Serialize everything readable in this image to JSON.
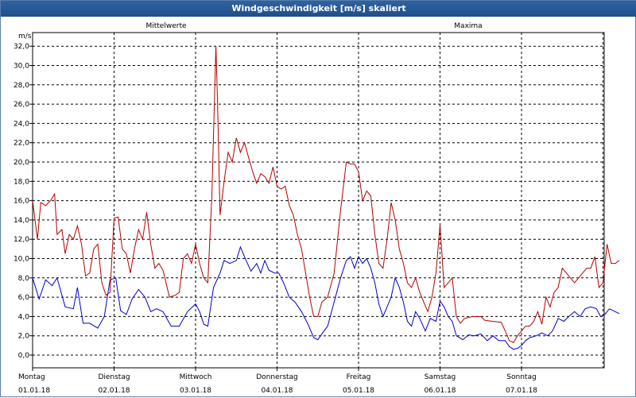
{
  "window": {
    "title": "Windgeschwindigkeit [m/s] skaliert"
  },
  "chart_data": {
    "type": "line",
    "ylabel": "m/s",
    "ylim": [
      -1,
      33
    ],
    "y_ticks": [
      "0,0",
      "2,0",
      "4,0",
      "6,0",
      "8,0",
      "10,0",
      "12,0",
      "14,0",
      "16,0",
      "18,0",
      "20,0",
      "22,0",
      "24,0",
      "26,0",
      "28,0",
      "30,0",
      "32,0"
    ],
    "xlim": [
      0,
      7.0
    ],
    "day_labels": [
      {
        "weekday": "Montag",
        "date": "01.01.18"
      },
      {
        "weekday": "Dienstag",
        "date": "02.01.18"
      },
      {
        "weekday": "Mittwoch",
        "date": "03.01.18"
      },
      {
        "weekday": "Donnerstag",
        "date": "04.01.18"
      },
      {
        "weekday": "Freitag",
        "date": "05.01.18"
      },
      {
        "weekday": "Samstag",
        "date": "06.01.18"
      },
      {
        "weekday": "Sonntag",
        "date": "07.01.18"
      }
    ],
    "grid": true,
    "series": [
      {
        "name": "Mittelwerte",
        "color": "#0000c8",
        "points": [
          [
            0.0,
            8.0
          ],
          [
            0.08,
            5.8
          ],
          [
            0.16,
            7.8
          ],
          [
            0.24,
            7.2
          ],
          [
            0.3,
            8.0
          ],
          [
            0.4,
            5.0
          ],
          [
            0.5,
            4.8
          ],
          [
            0.55,
            7.0
          ],
          [
            0.62,
            3.3
          ],
          [
            0.7,
            3.3
          ],
          [
            0.8,
            2.8
          ],
          [
            0.88,
            4.0
          ],
          [
            0.95,
            7.8
          ],
          [
            1.02,
            8.0
          ],
          [
            1.08,
            4.6
          ],
          [
            1.15,
            4.2
          ],
          [
            1.22,
            5.8
          ],
          [
            1.3,
            6.8
          ],
          [
            1.38,
            6.0
          ],
          [
            1.45,
            4.5
          ],
          [
            1.52,
            4.8
          ],
          [
            1.6,
            4.5
          ],
          [
            1.7,
            3.0
          ],
          [
            1.8,
            3.0
          ],
          [
            1.9,
            4.5
          ],
          [
            2.0,
            5.3
          ],
          [
            2.05,
            4.5
          ],
          [
            2.1,
            3.2
          ],
          [
            2.15,
            3.0
          ],
          [
            2.22,
            7.0
          ],
          [
            2.3,
            8.5
          ],
          [
            2.35,
            9.8
          ],
          [
            2.42,
            9.5
          ],
          [
            2.5,
            9.8
          ],
          [
            2.55,
            11.2
          ],
          [
            2.62,
            9.8
          ],
          [
            2.68,
            8.7
          ],
          [
            2.75,
            9.5
          ],
          [
            2.8,
            8.5
          ],
          [
            2.85,
            9.8
          ],
          [
            2.9,
            8.8
          ],
          [
            2.97,
            8.5
          ],
          [
            3.02,
            8.5
          ],
          [
            3.08,
            7.5
          ],
          [
            3.15,
            6.0
          ],
          [
            3.22,
            5.5
          ],
          [
            3.3,
            4.5
          ],
          [
            3.38,
            3.2
          ],
          [
            3.45,
            1.8
          ],
          [
            3.5,
            1.6
          ],
          [
            3.55,
            2.2
          ],
          [
            3.62,
            3.0
          ],
          [
            3.7,
            5.5
          ],
          [
            3.78,
            8.0
          ],
          [
            3.85,
            9.8
          ],
          [
            3.9,
            10.2
          ],
          [
            3.95,
            9.0
          ],
          [
            4.0,
            10.2
          ],
          [
            4.05,
            9.5
          ],
          [
            4.1,
            10.0
          ],
          [
            4.15,
            9.0
          ],
          [
            4.2,
            7.5
          ],
          [
            4.25,
            5.3
          ],
          [
            4.3,
            4.0
          ],
          [
            4.4,
            6.0
          ],
          [
            4.45,
            8.0
          ],
          [
            4.5,
            7.0
          ],
          [
            4.55,
            5.5
          ],
          [
            4.6,
            3.5
          ],
          [
            4.65,
            3.0
          ],
          [
            4.7,
            4.5
          ],
          [
            4.75,
            3.8
          ],
          [
            4.82,
            2.5
          ],
          [
            4.88,
            3.8
          ],
          [
            4.95,
            3.5
          ],
          [
            5.0,
            5.6
          ],
          [
            5.05,
            5.0
          ],
          [
            5.1,
            4.0
          ],
          [
            5.15,
            3.5
          ],
          [
            5.2,
            2.0
          ],
          [
            5.28,
            1.6
          ],
          [
            5.35,
            2.1
          ],
          [
            5.42,
            2.0
          ],
          [
            5.5,
            2.2
          ],
          [
            5.58,
            1.5
          ],
          [
            5.65,
            2.0
          ],
          [
            5.72,
            1.5
          ],
          [
            5.8,
            1.5
          ],
          [
            5.85,
            0.9
          ],
          [
            5.9,
            0.6
          ],
          [
            5.95,
            0.7
          ],
          [
            6.0,
            1.0
          ],
          [
            6.05,
            1.5
          ],
          [
            6.1,
            1.8
          ],
          [
            6.18,
            2.0
          ],
          [
            6.25,
            2.3
          ],
          [
            6.32,
            2.0
          ],
          [
            6.38,
            2.5
          ],
          [
            6.45,
            3.8
          ],
          [
            6.52,
            3.5
          ],
          [
            6.58,
            4.0
          ],
          [
            6.65,
            4.5
          ],
          [
            6.72,
            4.0
          ],
          [
            6.78,
            4.8
          ],
          [
            6.85,
            5.0
          ],
          [
            6.92,
            4.8
          ],
          [
            6.97,
            4.0
          ],
          [
            7.02,
            4.2
          ],
          [
            7.08,
            4.8
          ],
          [
            7.15,
            4.5
          ],
          [
            7.2,
            4.3
          ]
        ]
      },
      {
        "name": "Maxima",
        "color": "#b40000",
        "points": [
          [
            0.0,
            16.0
          ],
          [
            0.06,
            12.0
          ],
          [
            0.1,
            15.8
          ],
          [
            0.16,
            15.5
          ],
          [
            0.22,
            16.0
          ],
          [
            0.27,
            16.7
          ],
          [
            0.3,
            12.5
          ],
          [
            0.36,
            13.0
          ],
          [
            0.4,
            10.5
          ],
          [
            0.45,
            12.5
          ],
          [
            0.5,
            12.0
          ],
          [
            0.55,
            13.4
          ],
          [
            0.6,
            11.5
          ],
          [
            0.65,
            8.2
          ],
          [
            0.7,
            8.5
          ],
          [
            0.75,
            11.0
          ],
          [
            0.8,
            11.5
          ],
          [
            0.85,
            7.5
          ],
          [
            0.9,
            6.2
          ],
          [
            0.95,
            6.5
          ],
          [
            1.0,
            14.2
          ],
          [
            1.05,
            14.3
          ],
          [
            1.1,
            11.0
          ],
          [
            1.15,
            10.5
          ],
          [
            1.2,
            8.5
          ],
          [
            1.25,
            11.0
          ],
          [
            1.3,
            13.0
          ],
          [
            1.35,
            12.0
          ],
          [
            1.4,
            14.8
          ],
          [
            1.45,
            11.5
          ],
          [
            1.5,
            9.0
          ],
          [
            1.55,
            9.5
          ],
          [
            1.6,
            8.8
          ],
          [
            1.68,
            6.0
          ],
          [
            1.75,
            6.2
          ],
          [
            1.8,
            6.5
          ],
          [
            1.85,
            10.0
          ],
          [
            1.9,
            10.5
          ],
          [
            1.95,
            9.5
          ],
          [
            2.0,
            11.5
          ],
          [
            2.05,
            9.5
          ],
          [
            2.1,
            8.0
          ],
          [
            2.15,
            7.5
          ],
          [
            2.2,
            16.5
          ],
          [
            2.25,
            32.0
          ],
          [
            2.27,
            26.0
          ],
          [
            2.3,
            14.5
          ],
          [
            2.35,
            18.0
          ],
          [
            2.4,
            21.0
          ],
          [
            2.45,
            20.0
          ],
          [
            2.5,
            22.5
          ],
          [
            2.55,
            21.0
          ],
          [
            2.6,
            22.0
          ],
          [
            2.65,
            20.5
          ],
          [
            2.7,
            19.0
          ],
          [
            2.75,
            17.8
          ],
          [
            2.8,
            18.8
          ],
          [
            2.85,
            18.5
          ],
          [
            2.9,
            17.8
          ],
          [
            2.95,
            19.5
          ],
          [
            3.0,
            17.5
          ],
          [
            3.05,
            17.2
          ],
          [
            3.1,
            17.5
          ],
          [
            3.15,
            15.5
          ],
          [
            3.2,
            14.5
          ],
          [
            3.25,
            12.5
          ],
          [
            3.3,
            11.0
          ],
          [
            3.35,
            8.5
          ],
          [
            3.4,
            6.0
          ],
          [
            3.45,
            4.0
          ],
          [
            3.5,
            4.0
          ],
          [
            3.55,
            5.5
          ],
          [
            3.62,
            6.0
          ],
          [
            3.7,
            8.5
          ],
          [
            3.78,
            15.0
          ],
          [
            3.85,
            20.0
          ],
          [
            3.9,
            19.8
          ],
          [
            3.95,
            19.8
          ],
          [
            4.0,
            19.0
          ],
          [
            4.05,
            16.0
          ],
          [
            4.1,
            17.0
          ],
          [
            4.15,
            16.5
          ],
          [
            4.2,
            12.5
          ],
          [
            4.25,
            9.5
          ],
          [
            4.3,
            9.0
          ],
          [
            4.35,
            12.0
          ],
          [
            4.4,
            15.8
          ],
          [
            4.45,
            14.0
          ],
          [
            4.5,
            11.0
          ],
          [
            4.55,
            9.5
          ],
          [
            4.6,
            7.5
          ],
          [
            4.65,
            7.0
          ],
          [
            4.7,
            8.0
          ],
          [
            4.75,
            6.5
          ],
          [
            4.8,
            5.5
          ],
          [
            4.85,
            4.5
          ],
          [
            4.9,
            6.0
          ],
          [
            4.95,
            8.5
          ],
          [
            5.0,
            13.5
          ],
          [
            5.05,
            7.0
          ],
          [
            5.1,
            7.5
          ],
          [
            5.15,
            8.0
          ],
          [
            5.2,
            4.0
          ],
          [
            5.25,
            3.3
          ],
          [
            5.3,
            3.8
          ],
          [
            5.4,
            4.0
          ],
          [
            5.5,
            4.0
          ],
          [
            5.55,
            3.6
          ],
          [
            5.65,
            3.5
          ],
          [
            5.75,
            3.4
          ],
          [
            5.8,
            2.5
          ],
          [
            5.85,
            1.5
          ],
          [
            5.9,
            1.3
          ],
          [
            5.95,
            2.0
          ],
          [
            6.0,
            2.5
          ],
          [
            6.05,
            3.0
          ],
          [
            6.1,
            3.0
          ],
          [
            6.15,
            3.5
          ],
          [
            6.2,
            4.5
          ],
          [
            6.25,
            3.2
          ],
          [
            6.3,
            6.0
          ],
          [
            6.35,
            5.0
          ],
          [
            6.4,
            6.5
          ],
          [
            6.45,
            7.0
          ],
          [
            6.5,
            9.0
          ],
          [
            6.55,
            8.5
          ],
          [
            6.6,
            8.0
          ],
          [
            6.65,
            7.5
          ],
          [
            6.7,
            8.0
          ],
          [
            6.75,
            8.5
          ],
          [
            6.8,
            9.0
          ],
          [
            6.85,
            9.0
          ],
          [
            6.9,
            10.2
          ],
          [
            6.95,
            7.0
          ],
          [
            7.0,
            7.5
          ],
          [
            7.05,
            11.5
          ],
          [
            7.1,
            9.5
          ],
          [
            7.15,
            9.5
          ],
          [
            7.2,
            9.8
          ]
        ]
      }
    ]
  }
}
